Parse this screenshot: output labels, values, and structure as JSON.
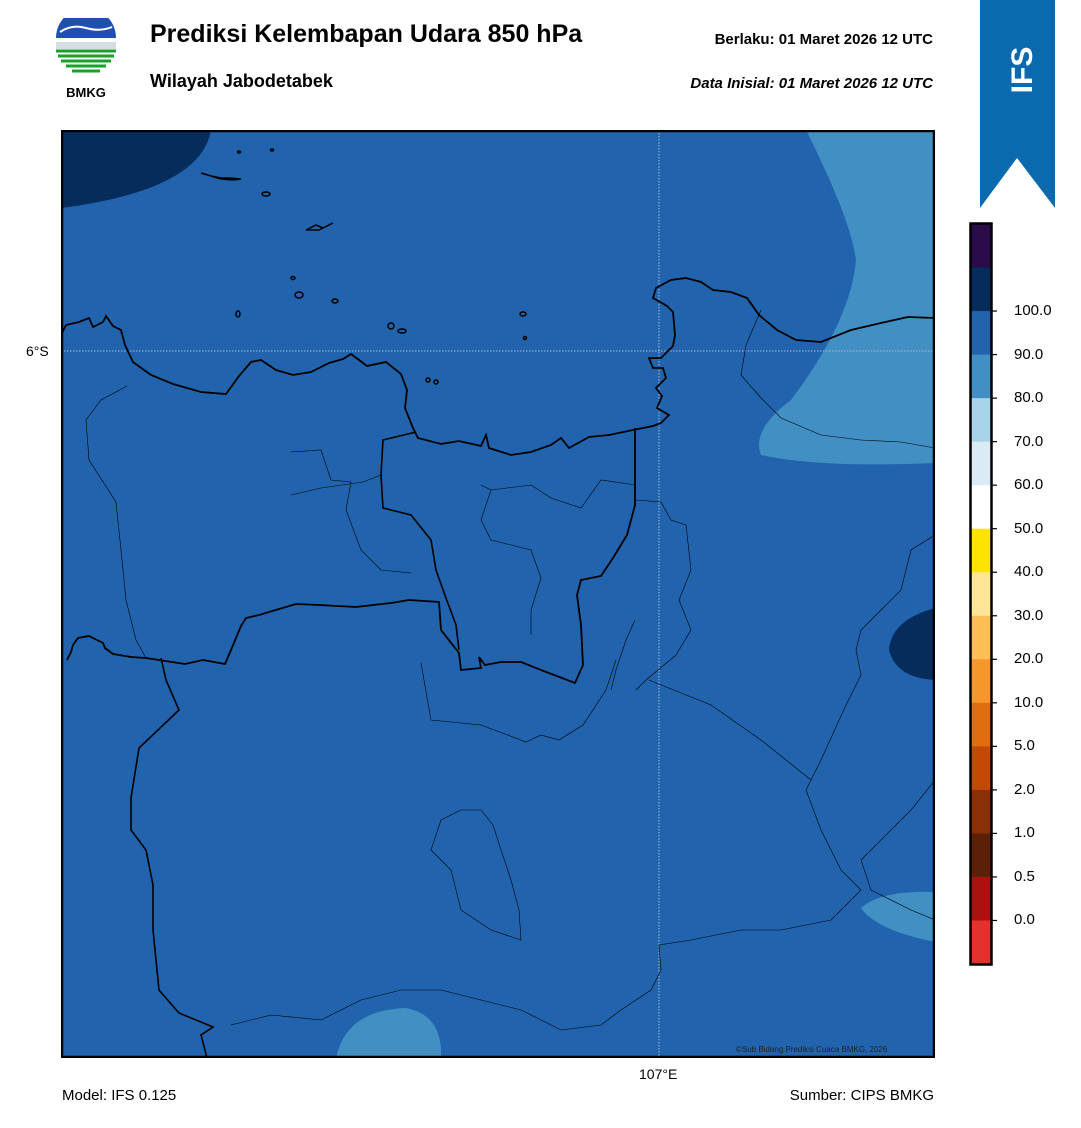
{
  "header": {
    "title": "Prediksi Kelembapan Udara 850 hPa",
    "subtitle": "Wilayah Jabodetabek",
    "valid_label": "Berlaku:  01 Maret 2026 12 UTC",
    "init_label": "Data Inisial:  01 Maret 2026 12 UTC"
  },
  "logo": {
    "text": "BMKG",
    "icon": "bmkg-logo-icon"
  },
  "ribbon": {
    "text": "IFS",
    "color": "#0a6aad"
  },
  "map": {
    "lat_label": "6°S",
    "lon_label": "107°E",
    "copyright": "©Sub Bidang Prediksi Cuaca BMKG, 2026",
    "background_color": "#2164ad"
  },
  "colorbar": {
    "labels": [
      "100.0",
      "90.0",
      "80.0",
      "70.0",
      "60.0",
      "50.0",
      "40.0",
      "30.0",
      "20.0",
      "10.0",
      "5.0",
      "2.0",
      "1.0",
      "0.5",
      "0.0"
    ],
    "colors": [
      "#2b0b4a",
      "#062c5c",
      "#2263ab",
      "#418fc3",
      "#a7d3e8",
      "#dbeaf4",
      "#ffffff",
      "#fde300",
      "#fde69a",
      "#fdbe55",
      "#f7962b",
      "#e06d10",
      "#c34a05",
      "#8a3006",
      "#5a2008",
      "#a9120f",
      "#e2322d"
    ]
  },
  "footer": {
    "model": "Model: IFS 0.125",
    "source": "Sumber: CIPS BMKG"
  }
}
